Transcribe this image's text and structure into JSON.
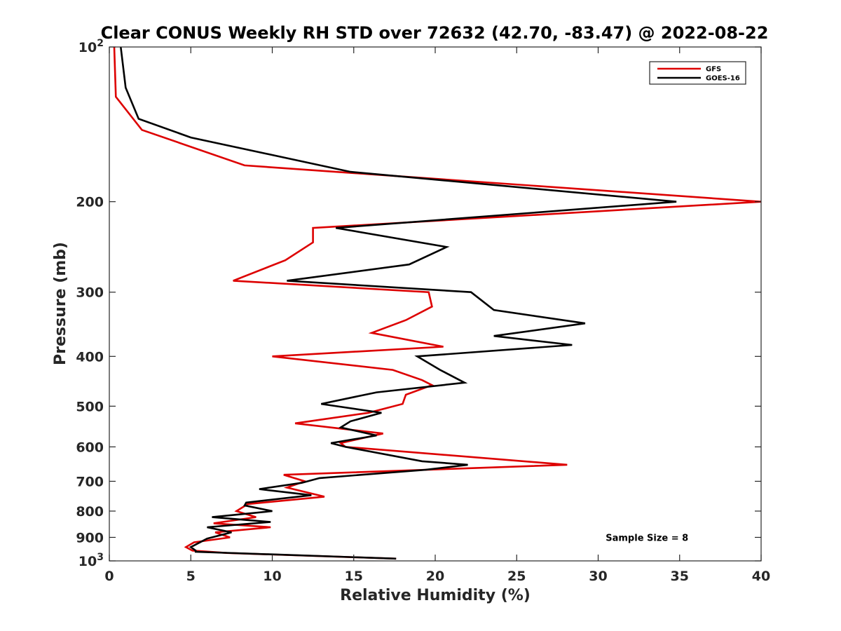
{
  "chart_data": {
    "type": "line",
    "title": "Clear CONUS Weekly RH STD over 72632 (42.70, -83.47) @ 2022-08-22",
    "xlabel": "Relative Humidity (%)",
    "ylabel": "Pressure (mb)",
    "xlim": [
      0,
      40
    ],
    "ylim": [
      100,
      1000
    ],
    "y_scale": "log",
    "y_reversed": true,
    "grid": false,
    "legend_position": "top-right",
    "x_ticks": [
      0,
      5,
      10,
      15,
      20,
      25,
      30,
      35,
      40
    ],
    "x_tick_labels": [
      "0",
      "5",
      "10",
      "15",
      "20",
      "25",
      "30",
      "35",
      "40"
    ],
    "y_ticks": [
      100,
      200,
      300,
      400,
      500,
      600,
      700,
      800,
      900,
      1000
    ],
    "y_tick_labels": [
      {
        "base": "10",
        "exp": "2"
      },
      {
        "base": "200",
        "exp": ""
      },
      {
        "base": "300",
        "exp": ""
      },
      {
        "base": "400",
        "exp": ""
      },
      {
        "base": "500",
        "exp": ""
      },
      {
        "base": "600",
        "exp": ""
      },
      {
        "base": "700",
        "exp": ""
      },
      {
        "base": "800",
        "exp": ""
      },
      {
        "base": "900",
        "exp": ""
      },
      {
        "base": "10",
        "exp": "3"
      }
    ],
    "series": [
      {
        "name": "GFS",
        "color": "#dd0000",
        "points": [
          [
            0.3,
            100
          ],
          [
            0.4,
            125
          ],
          [
            2.0,
            145
          ],
          [
            8.3,
            170
          ],
          [
            40.0,
            200
          ],
          [
            12.5,
            225
          ],
          [
            12.5,
            240
          ],
          [
            10.8,
            260
          ],
          [
            7.6,
            285
          ],
          [
            19.6,
            300
          ],
          [
            19.8,
            320
          ],
          [
            18.2,
            340
          ],
          [
            16.1,
            360
          ],
          [
            20.5,
            383
          ],
          [
            10.0,
            400
          ],
          [
            17.4,
            425
          ],
          [
            19.2,
            445
          ],
          [
            19.8,
            455
          ],
          [
            18.2,
            475
          ],
          [
            18.0,
            495
          ],
          [
            15.9,
            515
          ],
          [
            11.4,
            540
          ],
          [
            16.8,
            565
          ],
          [
            14.2,
            590
          ],
          [
            14.5,
            600
          ],
          [
            28.1,
            650
          ],
          [
            10.7,
            680
          ],
          [
            12.0,
            700
          ],
          [
            10.9,
            720
          ],
          [
            13.2,
            750
          ],
          [
            8.5,
            775
          ],
          [
            7.8,
            800
          ],
          [
            9.0,
            822
          ],
          [
            6.4,
            845
          ],
          [
            9.9,
            860
          ],
          [
            6.5,
            880
          ],
          [
            7.4,
            900
          ],
          [
            5.2,
            920
          ],
          [
            4.7,
            940
          ],
          [
            5.1,
            955
          ],
          [
            7.2,
            965
          ],
          [
            17.6,
            990
          ]
        ]
      },
      {
        "name": "GOES-16",
        "color": "#000000",
        "points": [
          [
            0.7,
            100
          ],
          [
            1.0,
            120
          ],
          [
            1.8,
            138
          ],
          [
            5.0,
            150
          ],
          [
            14.8,
            175
          ],
          [
            34.8,
            200
          ],
          [
            13.9,
            225
          ],
          [
            20.7,
            245
          ],
          [
            18.4,
            265
          ],
          [
            10.9,
            285
          ],
          [
            22.2,
            300
          ],
          [
            23.6,
            325
          ],
          [
            29.2,
            345
          ],
          [
            23.6,
            365
          ],
          [
            28.4,
            380
          ],
          [
            18.9,
            400
          ],
          [
            20.3,
            425
          ],
          [
            21.8,
            450
          ],
          [
            16.4,
            470
          ],
          [
            13.0,
            495
          ],
          [
            16.7,
            515
          ],
          [
            14.8,
            535
          ],
          [
            14.2,
            550
          ],
          [
            16.4,
            570
          ],
          [
            13.6,
            590
          ],
          [
            14.5,
            600
          ],
          [
            19.2,
            640
          ],
          [
            22.0,
            650
          ],
          [
            19.4,
            665
          ],
          [
            12.9,
            690
          ],
          [
            11.8,
            705
          ],
          [
            9.2,
            725
          ],
          [
            12.4,
            745
          ],
          [
            8.4,
            770
          ],
          [
            8.3,
            780
          ],
          [
            10.0,
            800
          ],
          [
            6.3,
            822
          ],
          [
            9.9,
            840
          ],
          [
            6.0,
            860
          ],
          [
            7.5,
            880
          ],
          [
            6.0,
            905
          ],
          [
            5.0,
            940
          ],
          [
            5.3,
            955
          ],
          [
            5.3,
            960
          ],
          [
            17.6,
            990
          ]
        ]
      }
    ],
    "annotations": [
      {
        "text": "Sample Size = 8",
        "x": 33.0,
        "y": 900
      }
    ]
  }
}
